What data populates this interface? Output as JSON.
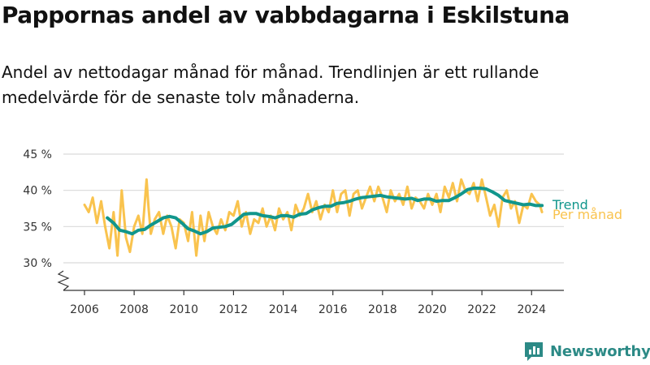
{
  "header": {
    "title": "Pappornas andel av vabbdagarna i Eskilstuna",
    "subtitle": "Andel av nettodagar månad för månad. Trendlinjen är ett rullande medelvärde för de senaste tolv månaderna."
  },
  "brand": {
    "name": "Newsworthy",
    "color": "#2c8a86"
  },
  "colors": {
    "trend": "#11968c",
    "monthly": "#f9c34e",
    "grid": "#d9d9d9",
    "axis": "#333333"
  },
  "chart_data": {
    "type": "line",
    "title": "Pappornas andel av vabbdagarna i Eskilstuna",
    "xlabel": "",
    "ylabel": "",
    "ylim": [
      26,
      46
    ],
    "y_axis_broken": true,
    "grid": true,
    "y_ticks": [
      30,
      35,
      40,
      45
    ],
    "y_tick_labels": [
      "30 %",
      "35 %",
      "40 %",
      "45 %"
    ],
    "x_ticks": [
      2006,
      2008,
      2010,
      2012,
      2014,
      2016,
      2018,
      2020,
      2022,
      2024
    ],
    "x_tick_labels": [
      "2006",
      "2008",
      "2010",
      "2012",
      "2014",
      "2016",
      "2018",
      "2020",
      "2022",
      "2024"
    ],
    "legend": "direct labels at right end of lines",
    "series": [
      {
        "name": "Per månad",
        "color": "#f9c34e",
        "x": [
          2006.0,
          2006.17,
          2006.33,
          2006.5,
          2006.67,
          2006.83,
          2007.0,
          2007.17,
          2007.33,
          2007.5,
          2007.67,
          2007.83,
          2008.0,
          2008.17,
          2008.33,
          2008.5,
          2008.58,
          2008.67,
          2008.83,
          2009.0,
          2009.17,
          2009.33,
          2009.5,
          2009.67,
          2009.83,
          2010.0,
          2010.17,
          2010.33,
          2010.5,
          2010.67,
          2010.83,
          2011.0,
          2011.17,
          2011.33,
          2011.5,
          2011.67,
          2011.83,
          2012.0,
          2012.17,
          2012.33,
          2012.5,
          2012.67,
          2012.83,
          2013.0,
          2013.17,
          2013.33,
          2013.5,
          2013.67,
          2013.83,
          2014.0,
          2014.17,
          2014.33,
          2014.5,
          2014.67,
          2014.83,
          2015.0,
          2015.17,
          2015.33,
          2015.5,
          2015.67,
          2015.83,
          2016.0,
          2016.17,
          2016.33,
          2016.5,
          2016.67,
          2016.83,
          2017.0,
          2017.17,
          2017.33,
          2017.5,
          2017.67,
          2017.83,
          2018.0,
          2018.17,
          2018.33,
          2018.5,
          2018.67,
          2018.83,
          2019.0,
          2019.17,
          2019.33,
          2019.5,
          2019.67,
          2019.83,
          2020.0,
          2020.17,
          2020.33,
          2020.5,
          2020.67,
          2020.83,
          2021.0,
          2021.17,
          2021.33,
          2021.5,
          2021.67,
          2021.83,
          2022.0,
          2022.17,
          2022.33,
          2022.5,
          2022.67,
          2022.83,
          2023.0,
          2023.17,
          2023.33,
          2023.5,
          2023.67,
          2023.83,
          2024.0,
          2024.17,
          2024.33,
          2024.42
        ],
        "values": [
          38.0,
          37.0,
          39.0,
          35.5,
          38.5,
          35.0,
          32.0,
          37.0,
          31.0,
          40.0,
          33.5,
          31.5,
          35.0,
          36.5,
          34.0,
          41.5,
          37.5,
          34.0,
          36.0,
          37.0,
          34.0,
          36.5,
          35.0,
          32.0,
          36.0,
          35.5,
          33.0,
          37.0,
          31.0,
          36.5,
          33.0,
          37.0,
          35.0,
          34.0,
          36.0,
          34.5,
          37.0,
          36.5,
          38.5,
          35.0,
          37.0,
          34.0,
          36.0,
          35.5,
          37.5,
          35.0,
          36.5,
          34.5,
          37.5,
          36.0,
          37.0,
          34.5,
          38.0,
          36.5,
          37.5,
          39.5,
          37.0,
          38.5,
          36.0,
          38.0,
          37.0,
          40.0,
          37.0,
          39.5,
          40.0,
          36.5,
          39.5,
          40.0,
          37.5,
          39.0,
          40.5,
          38.5,
          40.5,
          39.0,
          37.0,
          40.0,
          38.5,
          39.5,
          38.0,
          40.5,
          37.5,
          39.0,
          38.5,
          37.5,
          39.5,
          38.0,
          39.5,
          37.0,
          40.5,
          39.0,
          41.0,
          38.5,
          41.5,
          40.0,
          39.5,
          41.0,
          38.5,
          41.5,
          39.0,
          36.5,
          38.0,
          35.0,
          39.0,
          40.0,
          37.5,
          38.5,
          35.5,
          38.0,
          37.5,
          39.5,
          38.5,
          38.0,
          37.0
        ]
      },
      {
        "name": "Trend",
        "color": "#11968c",
        "x": [
          2006.92,
          2007.17,
          2007.42,
          2007.67,
          2007.92,
          2008.17,
          2008.42,
          2008.67,
          2008.92,
          2009.17,
          2009.42,
          2009.67,
          2009.92,
          2010.17,
          2010.42,
          2010.67,
          2010.92,
          2011.17,
          2011.42,
          2011.67,
          2011.92,
          2012.17,
          2012.42,
          2012.67,
          2012.92,
          2013.17,
          2013.42,
          2013.67,
          2013.92,
          2014.17,
          2014.42,
          2014.67,
          2014.92,
          2015.17,
          2015.42,
          2015.67,
          2015.92,
          2016.17,
          2016.42,
          2016.67,
          2016.92,
          2017.17,
          2017.42,
          2017.67,
          2017.92,
          2018.17,
          2018.42,
          2018.67,
          2018.92,
          2019.17,
          2019.42,
          2019.67,
          2019.92,
          2020.17,
          2020.42,
          2020.67,
          2020.92,
          2021.17,
          2021.42,
          2021.67,
          2021.92,
          2022.17,
          2022.42,
          2022.67,
          2022.92,
          2023.17,
          2023.42,
          2023.67,
          2023.92,
          2024.17,
          2024.42
        ],
        "values": [
          36.2,
          35.5,
          34.5,
          34.3,
          34.0,
          34.5,
          34.6,
          35.2,
          35.7,
          36.2,
          36.4,
          36.2,
          35.5,
          34.7,
          34.4,
          34.0,
          34.3,
          34.8,
          34.9,
          35.0,
          35.3,
          36.0,
          36.7,
          36.8,
          36.8,
          36.5,
          36.4,
          36.2,
          36.5,
          36.5,
          36.3,
          36.7,
          36.8,
          37.3,
          37.6,
          37.8,
          37.8,
          38.2,
          38.3,
          38.5,
          38.8,
          39.0,
          39.1,
          39.2,
          39.3,
          39.1,
          39.0,
          38.9,
          38.8,
          38.9,
          38.6,
          38.8,
          38.8,
          38.5,
          38.6,
          38.6,
          39.0,
          39.5,
          40.1,
          40.3,
          40.3,
          40.2,
          39.8,
          39.3,
          38.6,
          38.4,
          38.2,
          38.0,
          38.1,
          37.9,
          37.9
        ]
      }
    ]
  }
}
